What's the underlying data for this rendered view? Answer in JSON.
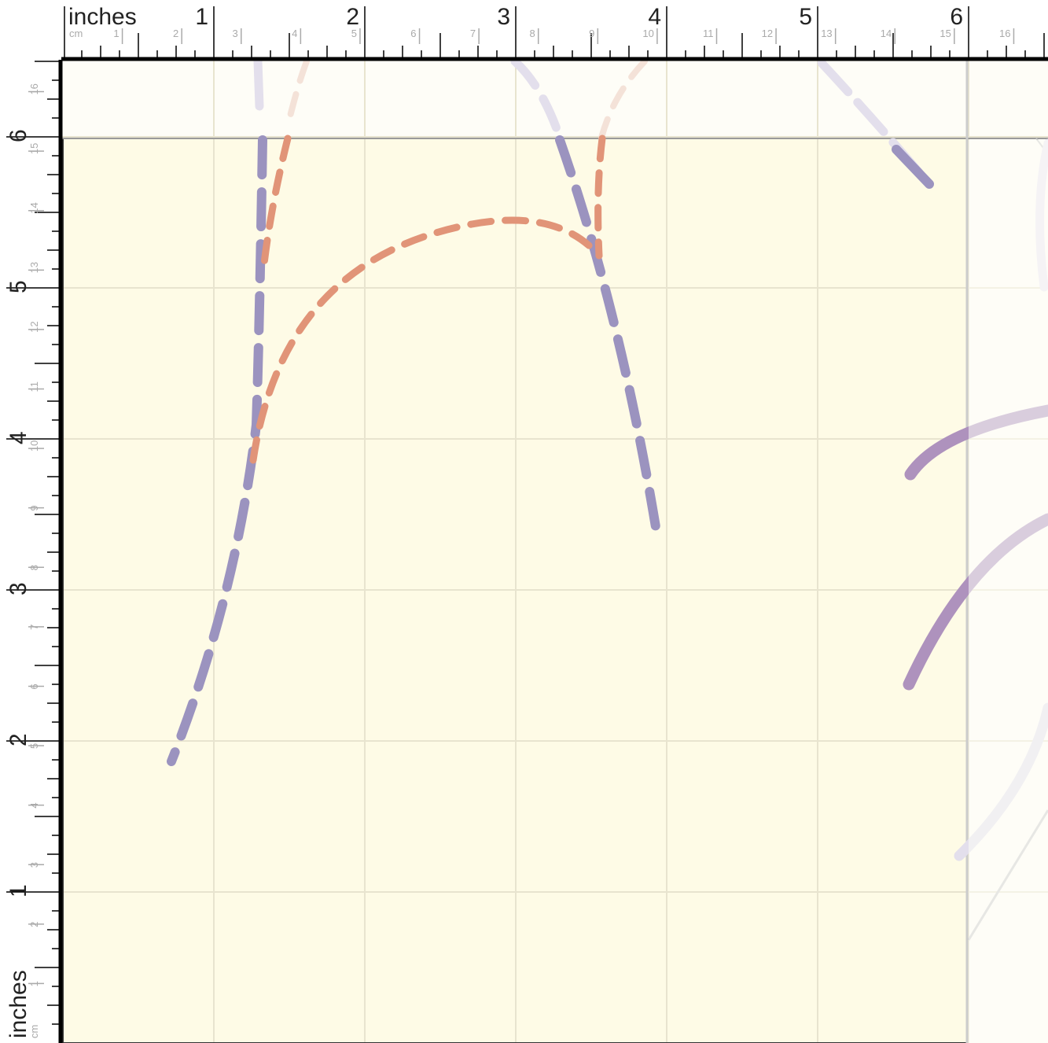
{
  "rulers": {
    "top": {
      "unit_label": "inches",
      "sub_unit_label": "cm",
      "inch_labels": [
        "1",
        "2",
        "3",
        "4",
        "5",
        "6"
      ],
      "cm_labels": [
        "1",
        "2",
        "3",
        "4",
        "5",
        "6",
        "7",
        "8",
        "9",
        "10",
        "11",
        "12",
        "13",
        "14",
        "15",
        "16"
      ]
    },
    "left": {
      "unit_label": "inches",
      "sub_unit_label": "cm",
      "inch_labels": [
        "1",
        "2",
        "3",
        "4",
        "5",
        "6"
      ],
      "cm_labels": [
        "1",
        "2",
        "3",
        "4",
        "5",
        "6",
        "7",
        "8",
        "9",
        "10",
        "11",
        "12",
        "13",
        "14",
        "15",
        "16"
      ]
    }
  },
  "colors": {
    "page": "#fefbe6",
    "pasteboard": "#fefdf7",
    "grid": "#e8e4cf",
    "path_purple": "#9b93bf",
    "path_orange": "#e19478",
    "path_mauve": "#ae92bd",
    "path_faint": "#e3dfec",
    "ruler_text": "#222222",
    "ruler_minor_text": "#aaaaaa"
  },
  "icons": {
    "canvas": "drawing-canvas-icon"
  }
}
